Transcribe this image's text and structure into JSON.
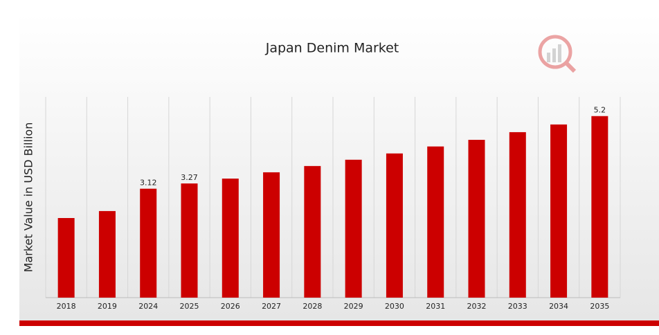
{
  "chart_data": {
    "type": "bar",
    "title": "Japan Denim Market",
    "y_label": "Market Value in USD Billion",
    "categories": [
      "2018",
      "2019",
      "2024",
      "2025",
      "2026",
      "2027",
      "2028",
      "2029",
      "2030",
      "2031",
      "2032",
      "2033",
      "2034",
      "2035"
    ],
    "values": [
      2.28,
      2.48,
      3.12,
      3.27,
      3.41,
      3.59,
      3.77,
      3.95,
      4.13,
      4.33,
      4.52,
      4.74,
      4.96,
      5.2
    ],
    "value_labels": [
      null,
      null,
      "3.12",
      "3.27",
      null,
      null,
      null,
      null,
      null,
      null,
      null,
      null,
      null,
      "5.2"
    ],
    "color": "#cc0000",
    "ylim": [
      0,
      5.75
    ]
  }
}
